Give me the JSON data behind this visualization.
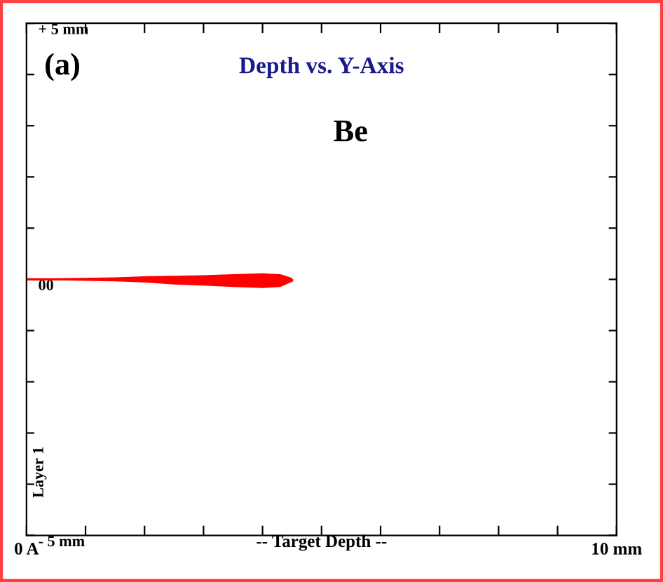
{
  "chart_data": {
    "type": "line",
    "title": "Depth vs. Y-Axis",
    "xlabel": "-- Target Depth --",
    "annotations": [
      "(a)",
      "Be",
      "Layer 1"
    ],
    "x": [
      0,
      0.5,
      1,
      1.5,
      2,
      2.5,
      3,
      3.5,
      4,
      4.3,
      4.5
    ],
    "series": [
      {
        "color": "#ff0000",
        "values": [
          0,
          0,
          0,
          0,
          0,
          -0.02,
          -0.03,
          -0.05,
          -0.05,
          -0.03,
          -0.02
        ],
        "lower": [
          -0.02,
          -0.02,
          -0.03,
          -0.04,
          -0.06,
          -0.1,
          -0.12,
          -0.15,
          -0.17,
          -0.15,
          -0.05
        ],
        "upper": [
          0.02,
          0.02,
          0.03,
          0.04,
          0.06,
          0.07,
          0.08,
          0.1,
          0.12,
          0.1,
          0.03
        ]
      }
    ],
    "xlim": [
      0,
      10
    ],
    "xticks": [
      {
        "value": 0,
        "label": "0 A"
      },
      {
        "value": 1,
        "label": null
      },
      {
        "value": 2,
        "label": null
      },
      {
        "value": 3,
        "label": null
      },
      {
        "value": 4,
        "label": null
      },
      {
        "value": 5,
        "label": null
      },
      {
        "value": 6,
        "label": null
      },
      {
        "value": 7,
        "label": null
      },
      {
        "value": 8,
        "label": null
      },
      {
        "value": 9,
        "label": null
      },
      {
        "value": 10,
        "label": "10 mm"
      }
    ],
    "ylim": [
      -5,
      5
    ],
    "yticks": [
      {
        "value": -5,
        "label": "- 5 mm"
      },
      {
        "value": -4,
        "label": null
      },
      {
        "value": -3,
        "label": null
      },
      {
        "value": -2,
        "label": null
      },
      {
        "value": -1,
        "label": null
      },
      {
        "value": 0,
        "label": "00"
      },
      {
        "value": 1,
        "label": null
      },
      {
        "value": 2,
        "label": null
      },
      {
        "value": 3,
        "label": null
      },
      {
        "value": 4,
        "label": null
      },
      {
        "value": 5,
        "label": "+ 5 mm"
      }
    ],
    "grid": false,
    "legend": false,
    "marker": "none",
    "line_style": "solid"
  }
}
